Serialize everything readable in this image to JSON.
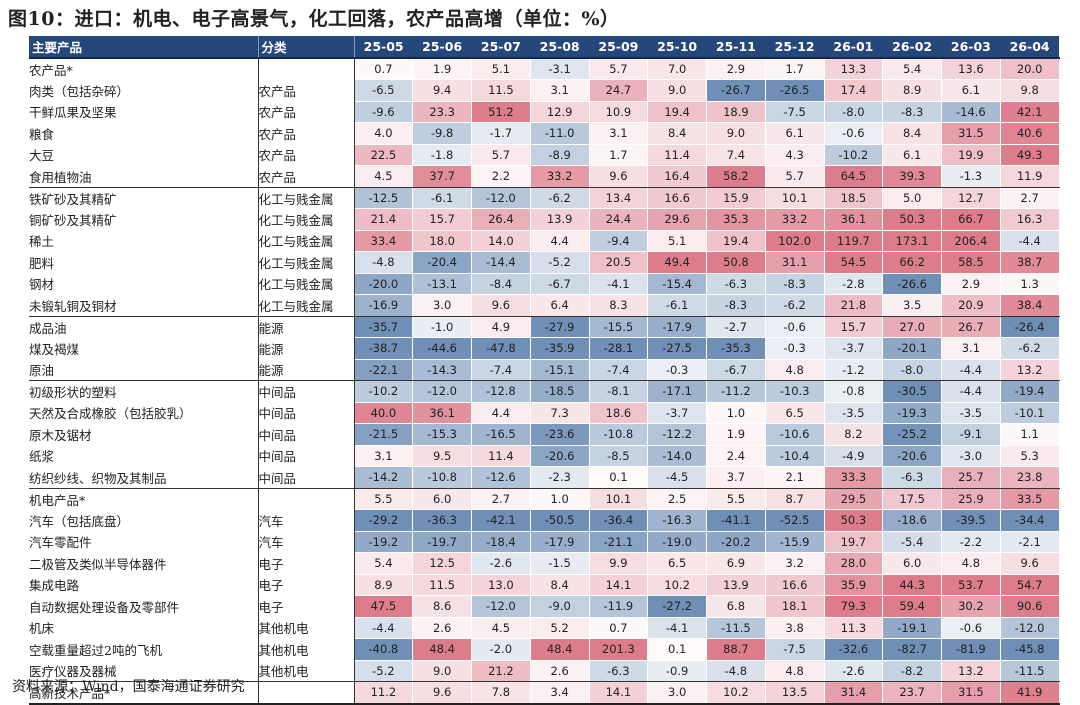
{
  "title": "图10：进口：机电、电子高景气，化工回落，农产品高增（单位：%）",
  "source": "资料来源：Wind，国泰海通证券研究",
  "header": {
    "name": "主要产品",
    "category": "分类",
    "months": [
      "25-05",
      "25-06",
      "25-07",
      "25-08",
      "25-09",
      "25-10",
      "25-11",
      "25-12",
      "26-01",
      "26-02",
      "26-03",
      "26-04"
    ]
  },
  "rows": [
    {
      "name": "农产品*",
      "category": "",
      "indent": false,
      "values": [
        "0.7",
        "1.9",
        "5.1",
        "-3.1",
        "5.7",
        "7.0",
        "2.9",
        "1.7",
        "13.3",
        "5.4",
        "13.6",
        "20.0"
      ]
    },
    {
      "name": "肉类（包括杂碎）",
      "category": "农产品",
      "indent": true,
      "values": [
        "-6.5",
        "9.4",
        "11.5",
        "3.1",
        "24.7",
        "9.0",
        "-26.7",
        "-26.5",
        "17.4",
        "8.9",
        "6.1",
        "9.8"
      ]
    },
    {
      "name": "干鲜瓜果及坚果",
      "category": "农产品",
      "indent": true,
      "values": [
        "-9.6",
        "23.3",
        "51.2",
        "12.9",
        "10.9",
        "19.4",
        "18.9",
        "-7.5",
        "-8.0",
        "-8.3",
        "-14.6",
        "42.1"
      ]
    },
    {
      "name": "粮食",
      "category": "农产品",
      "indent": true,
      "values": [
        "4.0",
        "-9.8",
        "-1.7",
        "-11.0",
        "3.1",
        "8.4",
        "9.0",
        "6.1",
        "-0.6",
        "8.4",
        "31.5",
        "40.6"
      ]
    },
    {
      "name": "大豆",
      "category": "农产品",
      "indent": true,
      "values": [
        "22.5",
        "-1.8",
        "5.7",
        "-8.9",
        "1.7",
        "11.4",
        "7.4",
        "4.3",
        "-10.2",
        "6.1",
        "19.9",
        "49.3"
      ]
    },
    {
      "name": "食用植物油",
      "category": "农产品",
      "indent": true,
      "end": true,
      "values": [
        "4.5",
        "37.7",
        "2.2",
        "33.2",
        "9.6",
        "16.4",
        "58.2",
        "5.7",
        "64.5",
        "39.3",
        "-1.3",
        "11.9"
      ]
    },
    {
      "name": "铁矿砂及其精矿",
      "category": "化工与贱金属",
      "indent": false,
      "values": [
        "-12.5",
        "-6.1",
        "-12.0",
        "-6.2",
        "13.4",
        "16.6",
        "15.9",
        "10.1",
        "18.5",
        "5.0",
        "12.7",
        "2.7"
      ]
    },
    {
      "name": "铜矿砂及其精矿",
      "category": "化工与贱金属",
      "indent": false,
      "values": [
        "21.4",
        "15.7",
        "26.4",
        "13.9",
        "24.4",
        "29.6",
        "35.3",
        "33.2",
        "36.1",
        "50.3",
        "66.7",
        "16.3"
      ]
    },
    {
      "name": "稀土",
      "category": "化工与贱金属",
      "indent": false,
      "values": [
        "33.4",
        "18.0",
        "14.0",
        "4.4",
        "-9.4",
        "5.1",
        "19.4",
        "102.0",
        "119.7",
        "173.1",
        "206.4",
        "-4.4"
      ]
    },
    {
      "name": "肥料",
      "category": "化工与贱金属",
      "indent": false,
      "values": [
        "-4.8",
        "-20.4",
        "-14.4",
        "-5.2",
        "20.5",
        "49.4",
        "50.8",
        "31.1",
        "54.5",
        "66.2",
        "58.5",
        "38.7"
      ]
    },
    {
      "name": "钢材",
      "category": "化工与贱金属",
      "indent": false,
      "values": [
        "-20.0",
        "-13.1",
        "-8.4",
        "-6.7",
        "-4.1",
        "-15.4",
        "-6.3",
        "-8.3",
        "-2.8",
        "-26.6",
        "2.9",
        "1.3"
      ]
    },
    {
      "name": "未锻轧铜及铜材",
      "category": "化工与贱金属",
      "indent": false,
      "end": true,
      "values": [
        "-16.9",
        "3.0",
        "9.6",
        "6.4",
        "8.3",
        "-6.1",
        "-8.3",
        "-6.2",
        "21.8",
        "3.5",
        "20.9",
        "38.4"
      ]
    },
    {
      "name": "成品油",
      "category": "能源",
      "indent": false,
      "values": [
        "-35.7",
        "-1.0",
        "4.9",
        "-27.9",
        "-15.5",
        "-17.9",
        "-2.7",
        "-0.6",
        "15.7",
        "27.0",
        "26.7",
        "-26.4"
      ]
    },
    {
      "name": "煤及褐煤",
      "category": "能源",
      "indent": false,
      "values": [
        "-38.7",
        "-44.6",
        "-47.8",
        "-35.9",
        "-28.1",
        "-27.5",
        "-35.3",
        "-0.3",
        "-3.7",
        "-20.1",
        "3.1",
        "-6.2"
      ]
    },
    {
      "name": "原油",
      "category": "能源",
      "indent": false,
      "end": true,
      "values": [
        "-22.1",
        "-14.3",
        "-7.4",
        "-15.1",
        "-7.4",
        "-0.3",
        "-6.7",
        "4.8",
        "-1.2",
        "-8.0",
        "-4.4",
        "13.2"
      ]
    },
    {
      "name": "初级形状的塑料",
      "category": "中间品",
      "indent": false,
      "values": [
        "-10.2",
        "-12.0",
        "-12.8",
        "-18.5",
        "-8.1",
        "-17.1",
        "-11.2",
        "-10.3",
        "-0.8",
        "-30.5",
        "-4.4",
        "-19.4"
      ]
    },
    {
      "name": "天然及合成橡胶（包括胶乳）",
      "category": "中间品",
      "indent": false,
      "values": [
        "40.0",
        "36.1",
        "4.4",
        "7.3",
        "18.6",
        "-3.7",
        "1.0",
        "6.5",
        "-3.5",
        "-19.3",
        "-3.5",
        "-10.1"
      ]
    },
    {
      "name": "原木及锯材",
      "category": "中间品",
      "indent": false,
      "values": [
        "-21.5",
        "-15.3",
        "-16.5",
        "-23.6",
        "-10.8",
        "-12.2",
        "1.9",
        "-10.6",
        "8.2",
        "-25.2",
        "-9.1",
        "1.1"
      ]
    },
    {
      "name": "纸浆",
      "category": "中间品",
      "indent": false,
      "values": [
        "3.1",
        "9.5",
        "11.4",
        "-20.6",
        "-8.5",
        "-14.0",
        "2.4",
        "-10.4",
        "-4.9",
        "-20.6",
        "-3.0",
        "5.3"
      ]
    },
    {
      "name": "纺织纱线、织物及其制品",
      "category": "中间品",
      "indent": false,
      "end": true,
      "values": [
        "-14.2",
        "-10.8",
        "-12.6",
        "-2.3",
        "0.1",
        "-4.5",
        "3.7",
        "2.1",
        "33.3",
        "-6.3",
        "25.7",
        "23.8"
      ]
    },
    {
      "name": "机电产品*",
      "category": "",
      "indent": false,
      "values": [
        "5.5",
        "6.0",
        "2.7",
        "1.0",
        "10.1",
        "2.5",
        "5.5",
        "8.7",
        "29.5",
        "17.5",
        "25.9",
        "33.5"
      ]
    },
    {
      "name": "汽车（包括底盘）",
      "category": "汽车",
      "indent": true,
      "values": [
        "-29.2",
        "-36.3",
        "-42.1",
        "-50.5",
        "-36.4",
        "-16.3",
        "-41.1",
        "-52.5",
        "50.3",
        "-18.6",
        "-39.5",
        "-34.4"
      ]
    },
    {
      "name": "汽车零配件",
      "category": "汽车",
      "indent": true,
      "values": [
        "-19.2",
        "-19.7",
        "-18.4",
        "-17.9",
        "-21.1",
        "-19.0",
        "-20.2",
        "-15.9",
        "19.7",
        "-5.4",
        "-2.2",
        "-2.1"
      ]
    },
    {
      "name": "二极管及类似半导体器件",
      "category": "电子",
      "indent": true,
      "values": [
        "5.4",
        "12.5",
        "-2.6",
        "-1.5",
        "9.9",
        "6.5",
        "6.9",
        "3.2",
        "28.0",
        "6.0",
        "4.8",
        "9.6"
      ]
    },
    {
      "name": "集成电路",
      "category": "电子",
      "indent": true,
      "values": [
        "8.9",
        "11.5",
        "13.0",
        "8.4",
        "14.1",
        "10.2",
        "13.9",
        "16.6",
        "35.9",
        "44.3",
        "53.7",
        "54.7"
      ]
    },
    {
      "name": "自动数据处理设备及零部件",
      "category": "电子",
      "indent": true,
      "values": [
        "47.5",
        "8.6",
        "-12.0",
        "-9.0",
        "-11.9",
        "-27.2",
        "6.8",
        "18.1",
        "79.3",
        "59.4",
        "30.2",
        "90.6"
      ]
    },
    {
      "name": "机床",
      "category": "其他机电",
      "indent": true,
      "values": [
        "-4.4",
        "2.6",
        "4.5",
        "5.2",
        "0.7",
        "-4.1",
        "-11.5",
        "3.8",
        "11.3",
        "-19.1",
        "-0.6",
        "-12.0"
      ]
    },
    {
      "name": "空载重量超过2吨的飞机",
      "category": "其他机电",
      "indent": true,
      "values": [
        "-40.8",
        "48.4",
        "-2.0",
        "48.4",
        "201.3",
        "0.1",
        "88.7",
        "-7.5",
        "-32.6",
        "-82.7",
        "-81.9",
        "-45.8"
      ]
    },
    {
      "name": "医疗仪器及器械",
      "category": "其他机电",
      "indent": true,
      "end": true,
      "values": [
        "-5.2",
        "9.0",
        "21.2",
        "2.6",
        "-6.3",
        "-0.9",
        "-4.8",
        "4.8",
        "-2.6",
        "-8.2",
        "13.2",
        "-11.5"
      ]
    },
    {
      "name": "高新技术产品*",
      "category": "",
      "indent": false,
      "last": true,
      "values": [
        "11.2",
        "9.6",
        "7.8",
        "3.4",
        "14.1",
        "3.0",
        "10.2",
        "13.5",
        "31.4",
        "23.7",
        "31.5",
        "41.9"
      ]
    }
  ],
  "colors": {
    "header_bg": "#26477a",
    "strong_negative": "#6f8fb6",
    "strong_positive": "#dd7d8c",
    "neutral": "#ffffff"
  }
}
